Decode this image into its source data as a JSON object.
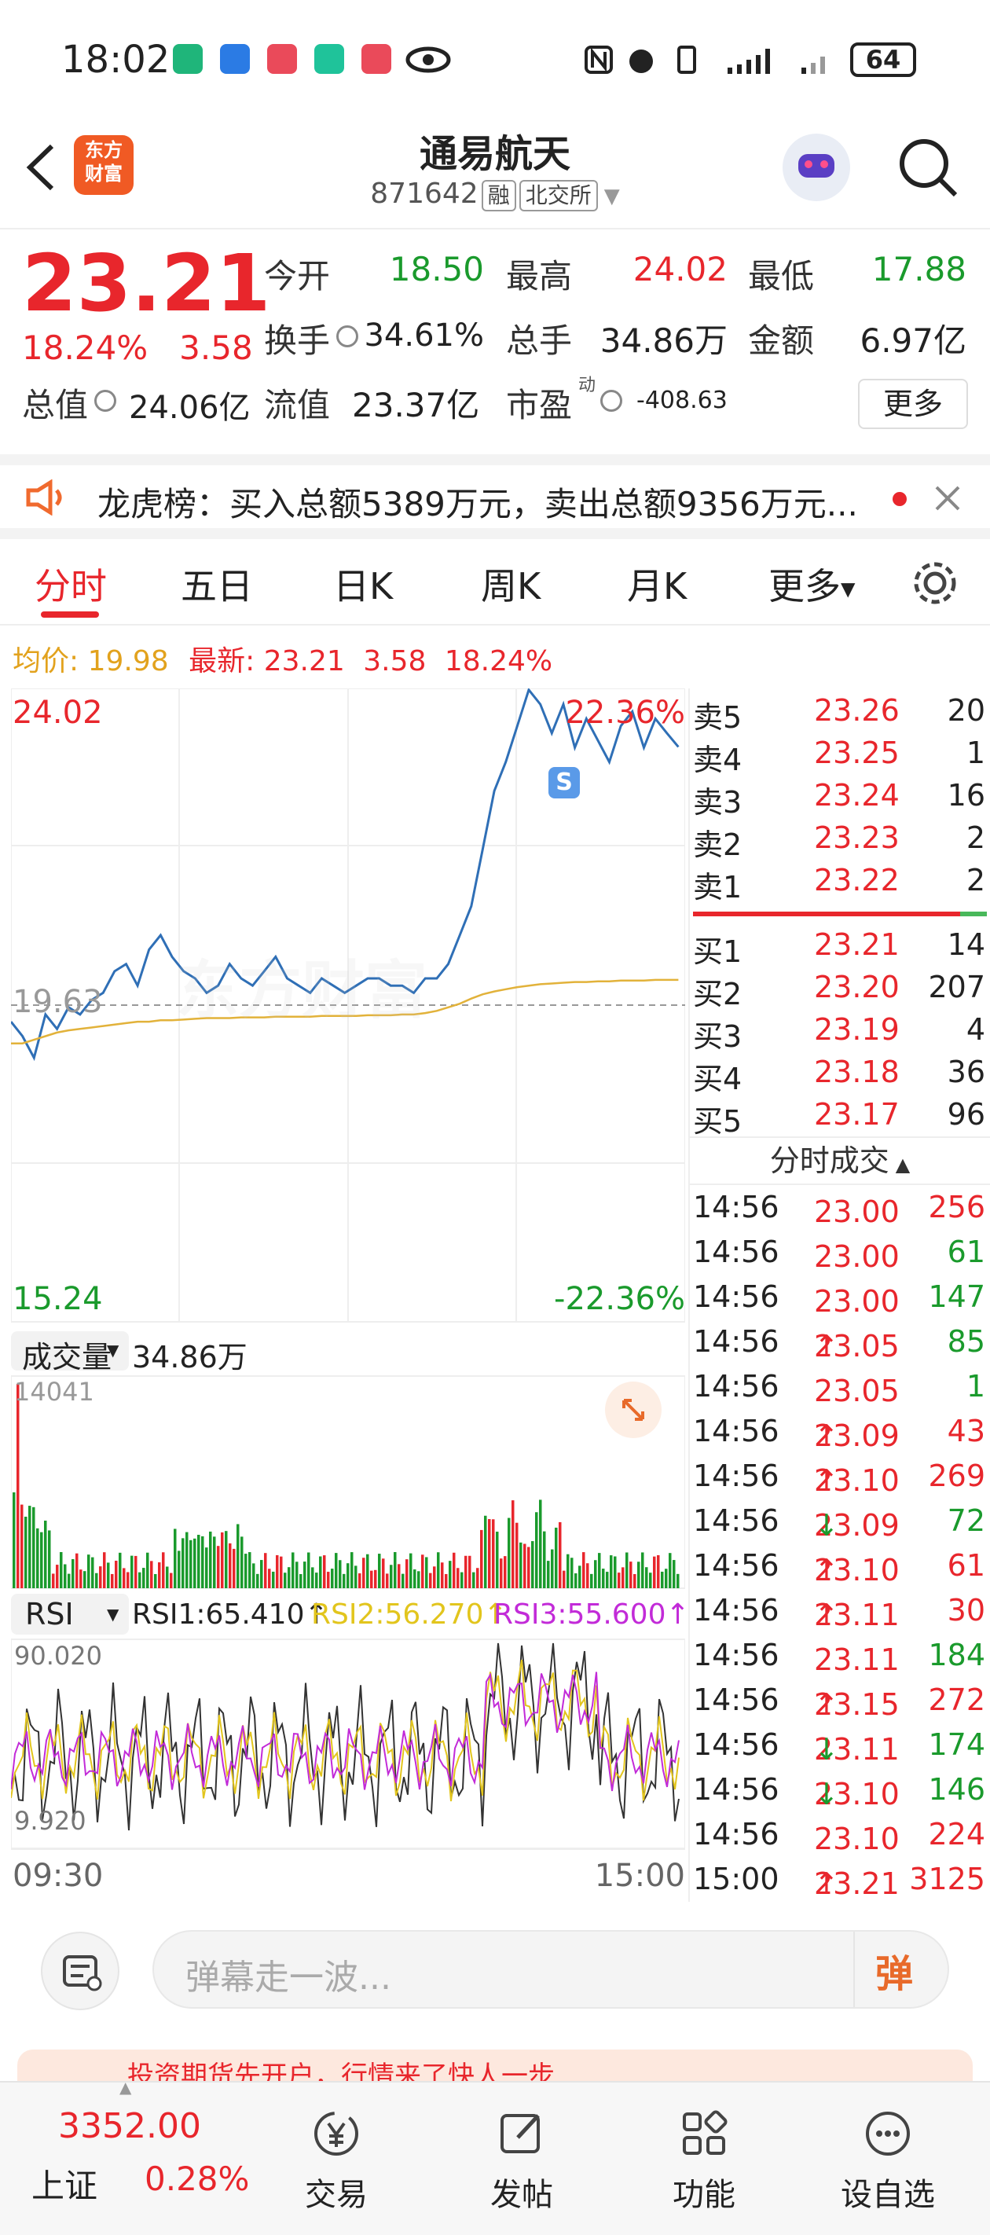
{
  "status_bar": {
    "time": "18:02",
    "battery": "64"
  },
  "header": {
    "logo_text": "东方财富",
    "title": "通易航天",
    "code": "871642",
    "tag_margin": "融",
    "tag_exchange": "北交所"
  },
  "quote": {
    "price": "23.21",
    "change_pct": "18.24%",
    "change": "3.58",
    "open_label": "今开",
    "open": "18.50",
    "high_label": "最高",
    "high": "24.02",
    "low_label": "最低",
    "low": "17.88",
    "turnover_label": "换手",
    "turnover": "34.61%",
    "volume_label": "总手",
    "volume": "34.86万",
    "amount_label": "金额",
    "amount": "6.97亿",
    "mktcap_label": "总值",
    "mktcap": "24.06亿",
    "float_label": "流值",
    "float_cap": "23.37亿",
    "pe_label": "市盈",
    "pe_sup": "动",
    "pe": "-408.63",
    "more_label": "更多"
  },
  "notice": {
    "text": "龙虎榜：买入总额5389万元，卖出总额9356万元..."
  },
  "tabs": [
    "分时",
    "五日",
    "日K",
    "周K",
    "月K",
    "更多"
  ],
  "avg_line": {
    "avg_label": "均价:",
    "avg": "19.98",
    "last_label": "最新:",
    "last": "23.21",
    "chg": "3.58",
    "pct": "18.24%"
  },
  "chart": {
    "y_top": "24.02",
    "y_mid": "19.63",
    "y_bottom": "15.24",
    "pct_top": "22.36%",
    "pct_bottom": "-22.36%",
    "watermark": "东方财富",
    "volume_label": "成交量",
    "volume_value": "34.86万",
    "volume_max": "14041",
    "rsi_label": "RSI",
    "rsi1": "RSI1:65.410↑",
    "rsi2": "RSI2:56.270↑",
    "rsi3": "RSI3:55.600↑",
    "rsi_top": "90.020",
    "rsi_bottom": "9.920",
    "time_start": "09:30",
    "time_end": "15:00",
    "colors": {
      "price": "#2f6fb6",
      "avg": "#e2b23a",
      "up": "#e8262c",
      "down": "#1a9a2c",
      "rsi1": "#333333",
      "rsi2": "#e2c51d",
      "rsi3": "#c22bd8"
    }
  },
  "chart_data": {
    "type": "line",
    "series": [
      {
        "name": "price",
        "values": [
          19.4,
          19.2,
          18.9,
          19.5,
          19.3,
          19.6,
          19.5,
          19.7,
          19.8,
          20.1,
          20.2,
          19.9,
          20.4,
          20.6,
          20.3,
          20.1,
          20.0,
          19.8,
          19.9,
          20.2,
          20.0,
          19.9,
          20.1,
          20.3,
          20.0,
          19.9,
          19.8,
          20.0,
          19.9,
          19.8,
          19.9,
          20.0,
          20.0,
          19.9,
          19.9,
          19.8,
          20.0,
          20.0,
          20.2,
          20.6,
          21.0,
          21.8,
          22.6,
          23.0,
          23.5,
          24.0,
          23.8,
          23.4,
          23.8,
          23.2,
          23.6,
          23.3,
          23.0,
          23.5,
          23.7,
          23.2,
          23.6,
          23.4,
          23.21
        ]
      },
      {
        "name": "均价",
        "values": [
          19.1,
          19.1,
          19.15,
          19.2,
          19.25,
          19.28,
          19.3,
          19.32,
          19.34,
          19.36,
          19.38,
          19.4,
          19.4,
          19.42,
          19.42,
          19.43,
          19.44,
          19.45,
          19.45,
          19.45,
          19.46,
          19.46,
          19.46,
          19.47,
          19.47,
          19.47,
          19.47,
          19.48,
          19.48,
          19.48,
          19.48,
          19.49,
          19.49,
          19.49,
          19.5,
          19.5,
          19.52,
          19.55,
          19.6,
          19.65,
          19.72,
          19.78,
          19.82,
          19.85,
          19.88,
          19.9,
          19.92,
          19.93,
          19.94,
          19.95,
          19.95,
          19.96,
          19.96,
          19.97,
          19.97,
          19.97,
          19.98,
          19.98,
          19.98
        ]
      }
    ],
    "ylim": [
      15.24,
      24.02
    ]
  },
  "order_book": {
    "sells": [
      {
        "label": "卖5",
        "price": "23.26",
        "qty": "20"
      },
      {
        "label": "卖4",
        "price": "23.25",
        "qty": "1"
      },
      {
        "label": "卖3",
        "price": "23.24",
        "qty": "16"
      },
      {
        "label": "卖2",
        "price": "23.23",
        "qty": "2"
      },
      {
        "label": "卖1",
        "price": "23.22",
        "qty": "2"
      }
    ],
    "buys": [
      {
        "label": "买1",
        "price": "23.21",
        "qty": "14"
      },
      {
        "label": "买2",
        "price": "23.20",
        "qty": "207"
      },
      {
        "label": "买3",
        "price": "23.19",
        "qty": "4"
      },
      {
        "label": "买4",
        "price": "23.18",
        "qty": "36"
      },
      {
        "label": "买5",
        "price": "23.17",
        "qty": "96"
      }
    ],
    "ticks_header": "分时成交",
    "ticks": [
      {
        "t": "14:56",
        "p": "23.00",
        "a": "",
        "q": "256",
        "qc": "red"
      },
      {
        "t": "14:56",
        "p": "23.00",
        "a": "",
        "q": "61",
        "qc": "green"
      },
      {
        "t": "14:56",
        "p": "23.00",
        "a": "",
        "q": "147",
        "qc": "green"
      },
      {
        "t": "14:56",
        "p": "23.05",
        "a": "↑",
        "q": "85",
        "qc": "green"
      },
      {
        "t": "14:56",
        "p": "23.05",
        "a": "",
        "q": "1",
        "qc": "green"
      },
      {
        "t": "14:56",
        "p": "23.09",
        "a": "↑",
        "q": "43",
        "qc": "red"
      },
      {
        "t": "14:56",
        "p": "23.10",
        "a": "↑",
        "q": "269",
        "qc": "red"
      },
      {
        "t": "14:56",
        "p": "23.09",
        "a": "↓",
        "q": "72",
        "qc": "green"
      },
      {
        "t": "14:56",
        "p": "23.10",
        "a": "↑",
        "q": "61",
        "qc": "red"
      },
      {
        "t": "14:56",
        "p": "23.11",
        "a": "↑",
        "q": "30",
        "qc": "red"
      },
      {
        "t": "14:56",
        "p": "23.11",
        "a": "",
        "q": "184",
        "qc": "green"
      },
      {
        "t": "14:56",
        "p": "23.15",
        "a": "↑",
        "q": "272",
        "qc": "red"
      },
      {
        "t": "14:56",
        "p": "23.11",
        "a": "↓",
        "q": "174",
        "qc": "green"
      },
      {
        "t": "14:56",
        "p": "23.10",
        "a": "↓",
        "q": "146",
        "qc": "green"
      },
      {
        "t": "14:56",
        "p": "23.10",
        "a": "",
        "q": "224",
        "qc": "red"
      },
      {
        "t": "15:00",
        "p": "23.21",
        "a": "↑",
        "q": "3125",
        "qc": "red"
      }
    ]
  },
  "danmaku": {
    "placeholder": "弹幕走一波...",
    "button": "弹"
  },
  "banner": {
    "text": "投资期货先开户，行情来了快人一步"
  },
  "bottom_bar": {
    "index_value": "3352.00",
    "index_name": "上证",
    "index_pct": "0.28%",
    "items": [
      "交易",
      "发帖",
      "功能",
      "设自选"
    ]
  }
}
